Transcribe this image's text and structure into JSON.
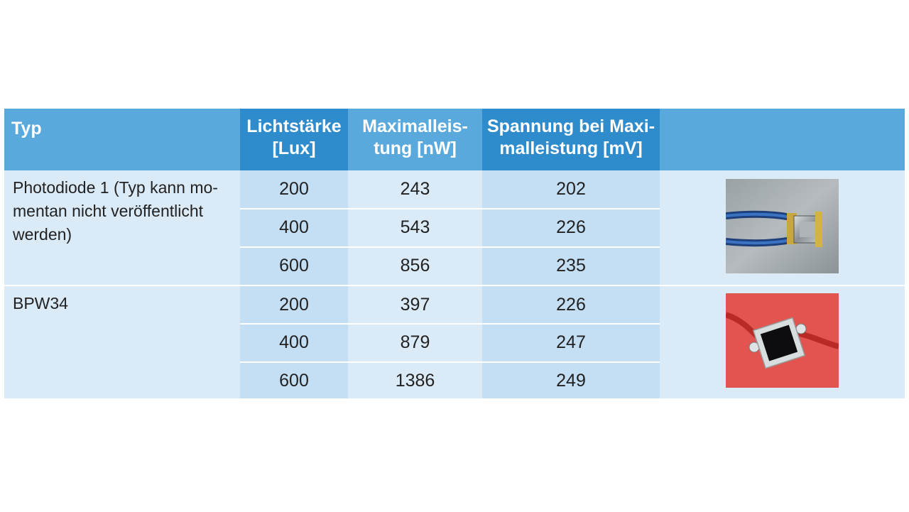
{
  "table": {
    "headers": {
      "typ": "Typ",
      "lichtstaerke_1": "Lichtstärke",
      "lichtstaerke_2": "[Lux]",
      "maximalleistung_1": "Maximalleis-",
      "maximalleistung_2": "tung [nW]",
      "spannung_1": "Spannung bei Maxi-",
      "spannung_2": "malleistung [mV]"
    },
    "groups": [
      {
        "typ_lines": [
          "Photodiode 1 (Typ kann mo-",
          "mentan nicht veröffentlicht",
          "werden)"
        ],
        "photo": "photodiode-1-photo",
        "rows": [
          {
            "lux": "200",
            "nw": "243",
            "mv": "202"
          },
          {
            "lux": "400",
            "nw": "543",
            "mv": "226"
          },
          {
            "lux": "600",
            "nw": "856",
            "mv": "235"
          }
        ]
      },
      {
        "typ_lines": [
          "BPW34"
        ],
        "photo": "bpw34-photo",
        "rows": [
          {
            "lux": "200",
            "nw": "397",
            "mv": "226"
          },
          {
            "lux": "400",
            "nw": "879",
            "mv": "247"
          },
          {
            "lux": "600",
            "nw": "1386",
            "mv": "249"
          }
        ]
      }
    ]
  }
}
